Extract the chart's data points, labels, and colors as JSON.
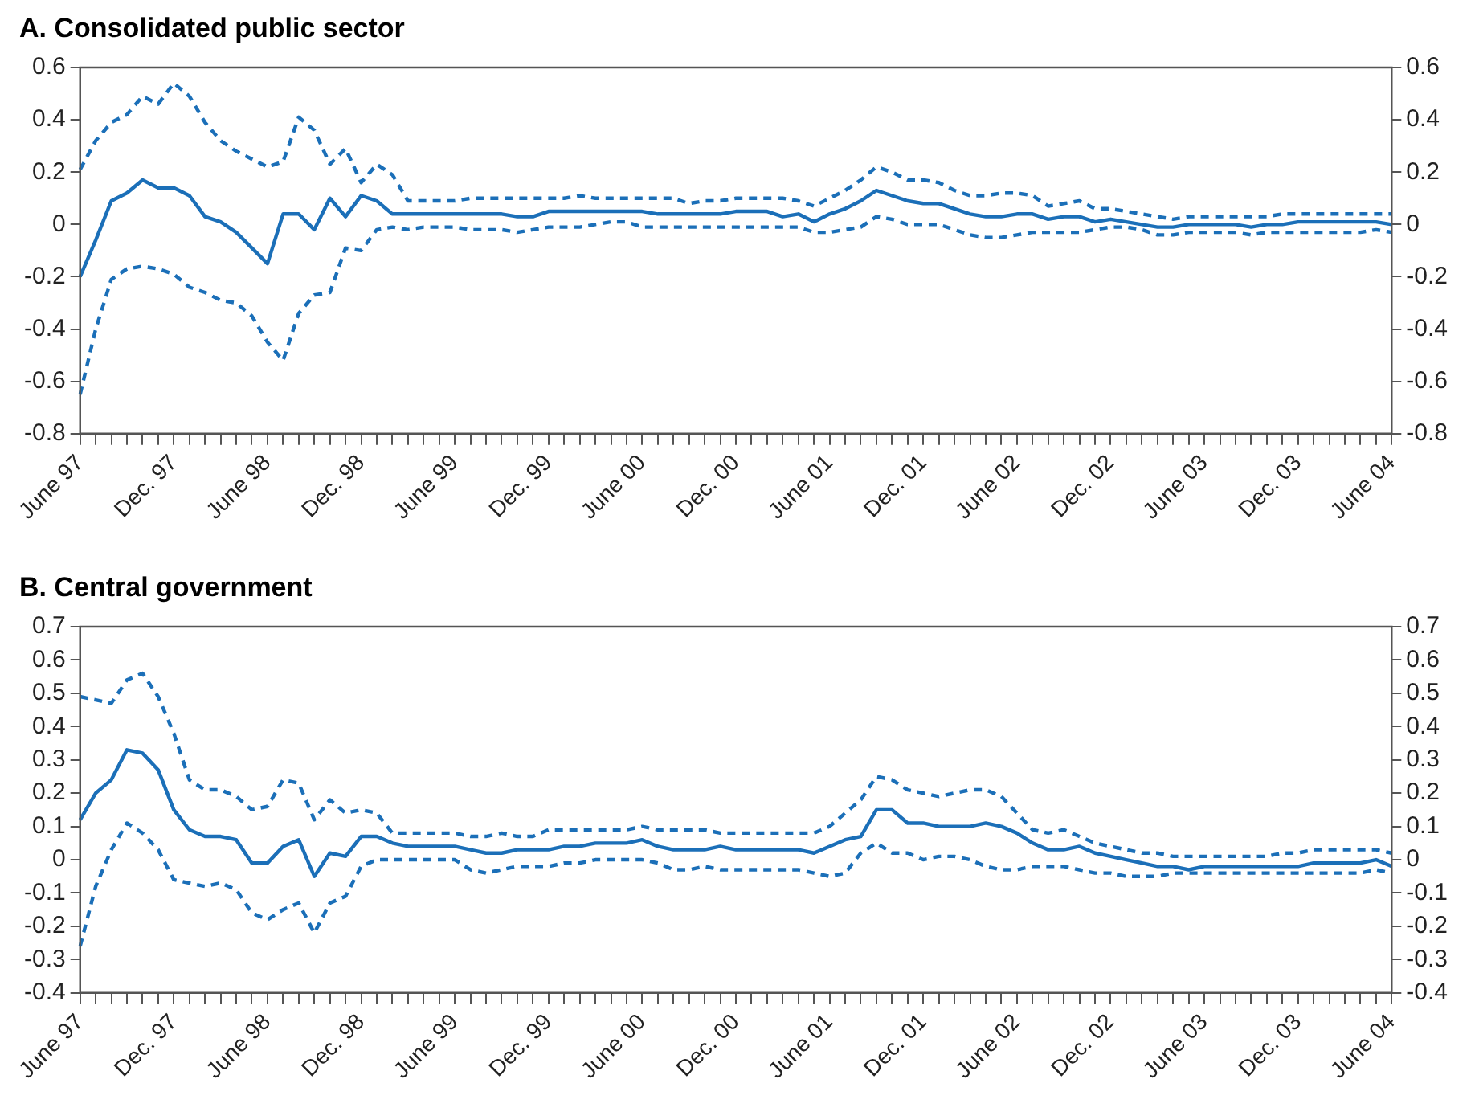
{
  "chart_data": [
    {
      "type": "line",
      "title": "A.  Consolidated public sector",
      "categories": [
        "June 97",
        null,
        null,
        null,
        null,
        null,
        "Dec. 97",
        null,
        null,
        null,
        null,
        null,
        "June 98",
        null,
        null,
        null,
        null,
        null,
        "Dec. 98",
        null,
        null,
        null,
        null,
        null,
        "June 99",
        null,
        null,
        null,
        null,
        null,
        "Dec. 99",
        null,
        null,
        null,
        null,
        null,
        "June 00",
        null,
        null,
        null,
        null,
        null,
        "Dec. 00",
        null,
        null,
        null,
        null,
        null,
        "June 01",
        null,
        null,
        null,
        null,
        null,
        "Dec. 01",
        null,
        null,
        null,
        null,
        null,
        "June 02",
        null,
        null,
        null,
        null,
        null,
        "Dec. 02",
        null,
        null,
        null,
        null,
        null,
        "June 03",
        null,
        null,
        null,
        null,
        null,
        "Dec. 03",
        null,
        null,
        null,
        null,
        null,
        "June 04"
      ],
      "series": [
        {
          "color": "#1b6fb8",
          "line_style": "solid",
          "values": [
            -0.2,
            -0.06,
            0.09,
            0.12,
            0.17,
            0.14,
            0.14,
            0.11,
            0.03,
            0.01,
            -0.03,
            -0.09,
            -0.15,
            0.04,
            0.04,
            -0.02,
            0.1,
            0.03,
            0.11,
            0.09,
            0.04,
            0.04,
            0.04,
            0.04,
            0.04,
            0.04,
            0.04,
            0.04,
            0.03,
            0.03,
            0.05,
            0.05,
            0.05,
            0.05,
            0.05,
            0.05,
            0.05,
            0.04,
            0.04,
            0.04,
            0.04,
            0.04,
            0.05,
            0.05,
            0.05,
            0.03,
            0.04,
            0.01,
            0.04,
            0.06,
            0.09,
            0.13,
            0.11,
            0.09,
            0.08,
            0.08,
            0.06,
            0.04,
            0.03,
            0.03,
            0.04,
            0.04,
            0.02,
            0.03,
            0.03,
            0.01,
            0.02,
            0.01,
            0.0,
            -0.01,
            -0.01,
            0.0,
            0.0,
            0.0,
            0.0,
            -0.01,
            0.0,
            0.0,
            0.01,
            0.01,
            0.01,
            0.01,
            0.01,
            0.01,
            0.0
          ]
        },
        {
          "color": "#1b6fb8",
          "line_style": "dashed",
          "values": [
            0.21,
            0.32,
            0.39,
            0.42,
            0.49,
            0.46,
            0.54,
            0.49,
            0.39,
            0.32,
            0.28,
            0.25,
            0.22,
            0.24,
            0.41,
            0.36,
            0.23,
            0.29,
            0.16,
            0.23,
            0.19,
            0.09,
            0.09,
            0.09,
            0.09,
            0.1,
            0.1,
            0.1,
            0.1,
            0.1,
            0.1,
            0.1,
            0.11,
            0.1,
            0.1,
            0.1,
            0.1,
            0.1,
            0.1,
            0.08,
            0.09,
            0.09,
            0.1,
            0.1,
            0.1,
            0.1,
            0.09,
            0.07,
            0.1,
            0.13,
            0.17,
            0.22,
            0.2,
            0.17,
            0.17,
            0.16,
            0.13,
            0.11,
            0.11,
            0.12,
            0.12,
            0.11,
            0.07,
            0.08,
            0.09,
            0.06,
            0.06,
            0.05,
            0.04,
            0.03,
            0.02,
            0.03,
            0.03,
            0.03,
            0.03,
            0.03,
            0.03,
            0.04,
            0.04,
            0.04,
            0.04,
            0.04,
            0.04,
            0.04,
            0.04
          ]
        },
        {
          "color": "#1b6fb8",
          "line_style": "dashed",
          "values": [
            -0.65,
            -0.4,
            -0.21,
            -0.17,
            -0.16,
            -0.17,
            -0.19,
            -0.24,
            -0.26,
            -0.29,
            -0.3,
            -0.35,
            -0.45,
            -0.52,
            -0.34,
            -0.27,
            -0.26,
            -0.09,
            -0.1,
            -0.02,
            -0.01,
            -0.02,
            -0.01,
            -0.01,
            -0.01,
            -0.02,
            -0.02,
            -0.02,
            -0.03,
            -0.02,
            -0.01,
            -0.01,
            -0.01,
            0.0,
            0.01,
            0.01,
            -0.01,
            -0.01,
            -0.01,
            -0.01,
            -0.01,
            -0.01,
            -0.01,
            -0.01,
            -0.01,
            -0.01,
            -0.01,
            -0.03,
            -0.03,
            -0.02,
            -0.01,
            0.03,
            0.02,
            0.0,
            0.0,
            0.0,
            -0.02,
            -0.04,
            -0.05,
            -0.05,
            -0.04,
            -0.03,
            -0.03,
            -0.03,
            -0.03,
            -0.02,
            -0.01,
            -0.01,
            -0.02,
            -0.04,
            -0.04,
            -0.03,
            -0.03,
            -0.03,
            -0.03,
            -0.04,
            -0.03,
            -0.03,
            -0.03,
            -0.03,
            -0.03,
            -0.03,
            -0.03,
            -0.02,
            -0.03
          ]
        }
      ],
      "ylim": [
        -0.8,
        0.6
      ],
      "yticks": [
        -0.8,
        -0.6,
        -0.4,
        -0.2,
        0,
        0.2,
        0.4,
        0.6
      ],
      "y2lim": [
        -0.8,
        0.6
      ],
      "y2ticks": [
        -0.8,
        -0.6,
        -0.4,
        -0.2,
        0,
        0.2,
        0.4,
        0.6
      ],
      "grid": false,
      "legend": false,
      "marker": "none"
    },
    {
      "type": "line",
      "title": "B.  Central government",
      "categories": [
        "June 97",
        null,
        null,
        null,
        null,
        null,
        "Dec. 97",
        null,
        null,
        null,
        null,
        null,
        "June 98",
        null,
        null,
        null,
        null,
        null,
        "Dec. 98",
        null,
        null,
        null,
        null,
        null,
        "June 99",
        null,
        null,
        null,
        null,
        null,
        "Dec. 99",
        null,
        null,
        null,
        null,
        null,
        "June 00",
        null,
        null,
        null,
        null,
        null,
        "Dec. 00",
        null,
        null,
        null,
        null,
        null,
        "June 01",
        null,
        null,
        null,
        null,
        null,
        "Dec. 01",
        null,
        null,
        null,
        null,
        null,
        "June 02",
        null,
        null,
        null,
        null,
        null,
        "Dec. 02",
        null,
        null,
        null,
        null,
        null,
        "June 03",
        null,
        null,
        null,
        null,
        null,
        "Dec. 03",
        null,
        null,
        null,
        null,
        null,
        "June 04"
      ],
      "series": [
        {
          "color": "#1b6fb8",
          "line_style": "solid",
          "values": [
            0.12,
            0.2,
            0.24,
            0.33,
            0.32,
            0.27,
            0.15,
            0.09,
            0.07,
            0.07,
            0.06,
            -0.01,
            -0.01,
            0.04,
            0.06,
            -0.05,
            0.02,
            0.01,
            0.07,
            0.07,
            0.05,
            0.04,
            0.04,
            0.04,
            0.04,
            0.03,
            0.02,
            0.02,
            0.03,
            0.03,
            0.03,
            0.04,
            0.04,
            0.05,
            0.05,
            0.05,
            0.06,
            0.04,
            0.03,
            0.03,
            0.03,
            0.04,
            0.03,
            0.03,
            0.03,
            0.03,
            0.03,
            0.02,
            0.04,
            0.06,
            0.07,
            0.15,
            0.15,
            0.11,
            0.11,
            0.1,
            0.1,
            0.1,
            0.11,
            0.1,
            0.08,
            0.05,
            0.03,
            0.03,
            0.04,
            0.02,
            0.01,
            0.0,
            -0.01,
            -0.02,
            -0.02,
            -0.03,
            -0.02,
            -0.02,
            -0.02,
            -0.02,
            -0.02,
            -0.02,
            -0.02,
            -0.01,
            -0.01,
            -0.01,
            -0.01,
            0.0,
            -0.02
          ]
        },
        {
          "color": "#1b6fb8",
          "line_style": "dashed",
          "values": [
            0.49,
            0.48,
            0.47,
            0.54,
            0.56,
            0.49,
            0.38,
            0.24,
            0.21,
            0.21,
            0.19,
            0.15,
            0.16,
            0.24,
            0.23,
            0.12,
            0.18,
            0.14,
            0.15,
            0.14,
            0.08,
            0.08,
            0.08,
            0.08,
            0.08,
            0.07,
            0.07,
            0.08,
            0.07,
            0.07,
            0.09,
            0.09,
            0.09,
            0.09,
            0.09,
            0.09,
            0.1,
            0.09,
            0.09,
            0.09,
            0.09,
            0.08,
            0.08,
            0.08,
            0.08,
            0.08,
            0.08,
            0.08,
            0.1,
            0.14,
            0.18,
            0.25,
            0.24,
            0.21,
            0.2,
            0.19,
            0.2,
            0.21,
            0.21,
            0.19,
            0.14,
            0.09,
            0.08,
            0.09,
            0.07,
            0.05,
            0.04,
            0.03,
            0.02,
            0.02,
            0.01,
            0.01,
            0.01,
            0.01,
            0.01,
            0.01,
            0.01,
            0.02,
            0.02,
            0.03,
            0.03,
            0.03,
            0.03,
            0.03,
            0.02
          ]
        },
        {
          "color": "#1b6fb8",
          "line_style": "dashed",
          "values": [
            -0.26,
            -0.08,
            0.03,
            0.11,
            0.08,
            0.03,
            -0.06,
            -0.07,
            -0.08,
            -0.07,
            -0.09,
            -0.16,
            -0.18,
            -0.15,
            -0.13,
            -0.22,
            -0.13,
            -0.11,
            -0.02,
            0.0,
            0.0,
            0.0,
            0.0,
            0.0,
            0.0,
            -0.03,
            -0.04,
            -0.03,
            -0.02,
            -0.02,
            -0.02,
            -0.01,
            -0.01,
            0.0,
            0.0,
            0.0,
            0.0,
            -0.01,
            -0.03,
            -0.03,
            -0.02,
            -0.03,
            -0.03,
            -0.03,
            -0.03,
            -0.03,
            -0.03,
            -0.04,
            -0.05,
            -0.04,
            0.02,
            0.05,
            0.02,
            0.02,
            0.0,
            0.01,
            0.01,
            0.0,
            -0.02,
            -0.03,
            -0.03,
            -0.02,
            -0.02,
            -0.02,
            -0.03,
            -0.04,
            -0.04,
            -0.05,
            -0.05,
            -0.05,
            -0.04,
            -0.04,
            -0.04,
            -0.04,
            -0.04,
            -0.04,
            -0.04,
            -0.04,
            -0.04,
            -0.04,
            -0.04,
            -0.04,
            -0.04,
            -0.03,
            -0.04
          ]
        }
      ],
      "ylim": [
        -0.4,
        0.7
      ],
      "yticks": [
        -0.4,
        -0.3,
        -0.2,
        -0.1,
        0,
        0.1,
        0.2,
        0.3,
        0.4,
        0.5,
        0.6,
        0.7
      ],
      "y2lim": [
        -0.4,
        0.7
      ],
      "y2ticks": [
        -0.4,
        -0.3,
        -0.2,
        -0.1,
        0,
        0.1,
        0.2,
        0.3,
        0.4,
        0.5,
        0.6,
        0.7
      ],
      "grid": false,
      "legend": false,
      "marker": "none"
    }
  ]
}
